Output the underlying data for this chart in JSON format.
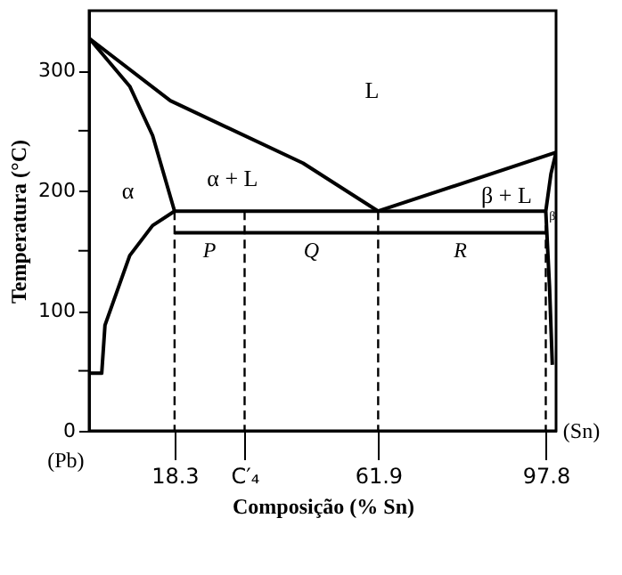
{
  "chart_data": {
    "type": "line",
    "xlabel": "Composição (% Sn)",
    "ylabel": "Temperatura (°C)",
    "xlim": [
      0,
      100
    ],
    "ylim": [
      0,
      350
    ],
    "xticks": [
      18.3,
      {
        "value": 33.3,
        "label": "C′₄"
      },
      61.9,
      97.8
    ],
    "yticks": [
      0,
      {
        "value": 50,
        "label": null
      },
      100,
      {
        "value": 150,
        "label": null
      },
      200,
      {
        "value": 250,
        "label": null
      },
      300
    ],
    "grid": false,
    "series": [
      {
        "color": "#000000",
        "x": [
          0,
          17.4,
          45.8,
          61.9
        ],
        "values": [
          327,
          275,
          223,
          183
        ],
        "line_style": "solid"
      },
      {
        "color": "#000000",
        "x": [
          0,
          8.7,
          13.6,
          18.3
        ],
        "values": [
          327,
          287,
          246,
          183
        ],
        "line_style": "solid"
      },
      {
        "color": "#000000",
        "x": [
          0,
          2.7,
          3.4,
          8.7,
          13.6,
          18.3
        ],
        "values": [
          48,
          48,
          88,
          146,
          171,
          183
        ],
        "line_style": "solid"
      },
      {
        "color": "#000000",
        "x": [
          18.3,
          97.8
        ],
        "values": [
          183,
          183
        ],
        "line_style": "solid"
      },
      {
        "color": "#000000",
        "x": [
          61.9,
          100
        ],
        "values": [
          183,
          232
        ],
        "line_style": "solid"
      },
      {
        "color": "#000000",
        "x": [
          100,
          98.9,
          97.8,
          98.6,
          99.2
        ],
        "values": [
          232,
          214,
          183,
          120,
          55
        ],
        "line_style": "solid"
      },
      {
        "color": "#000000",
        "x": [
          18.3,
          18.3
        ],
        "values": [
          183,
          0
        ],
        "line_style": "dashed"
      },
      {
        "color": "#000000",
        "x": [
          33.3,
          33.3
        ],
        "values": [
          183,
          0
        ],
        "line_style": "dashed"
      },
      {
        "color": "#000000",
        "x": [
          61.9,
          61.9
        ],
        "values": [
          183,
          0
        ],
        "line_style": "dashed"
      },
      {
        "color": "#000000",
        "x": [
          97.8,
          97.8
        ],
        "values": [
          183,
          0
        ],
        "line_style": "dashed"
      },
      {
        "color": "#000000",
        "x": [
          18.3,
          33.3,
          61.9,
          97.8
        ],
        "values": [
          165,
          165,
          165,
          165
        ],
        "line_style": "solid"
      }
    ],
    "annotations": [
      "α",
      "α + L",
      "L",
      "β + L",
      "β",
      "(Pb)",
      "(Sn)",
      {
        "text": "P",
        "x": 25.8,
        "y": 165
      },
      {
        "text": "Q",
        "x": 47.6,
        "y": 165
      },
      {
        "text": "R",
        "x": 79.5,
        "y": 165
      }
    ]
  }
}
